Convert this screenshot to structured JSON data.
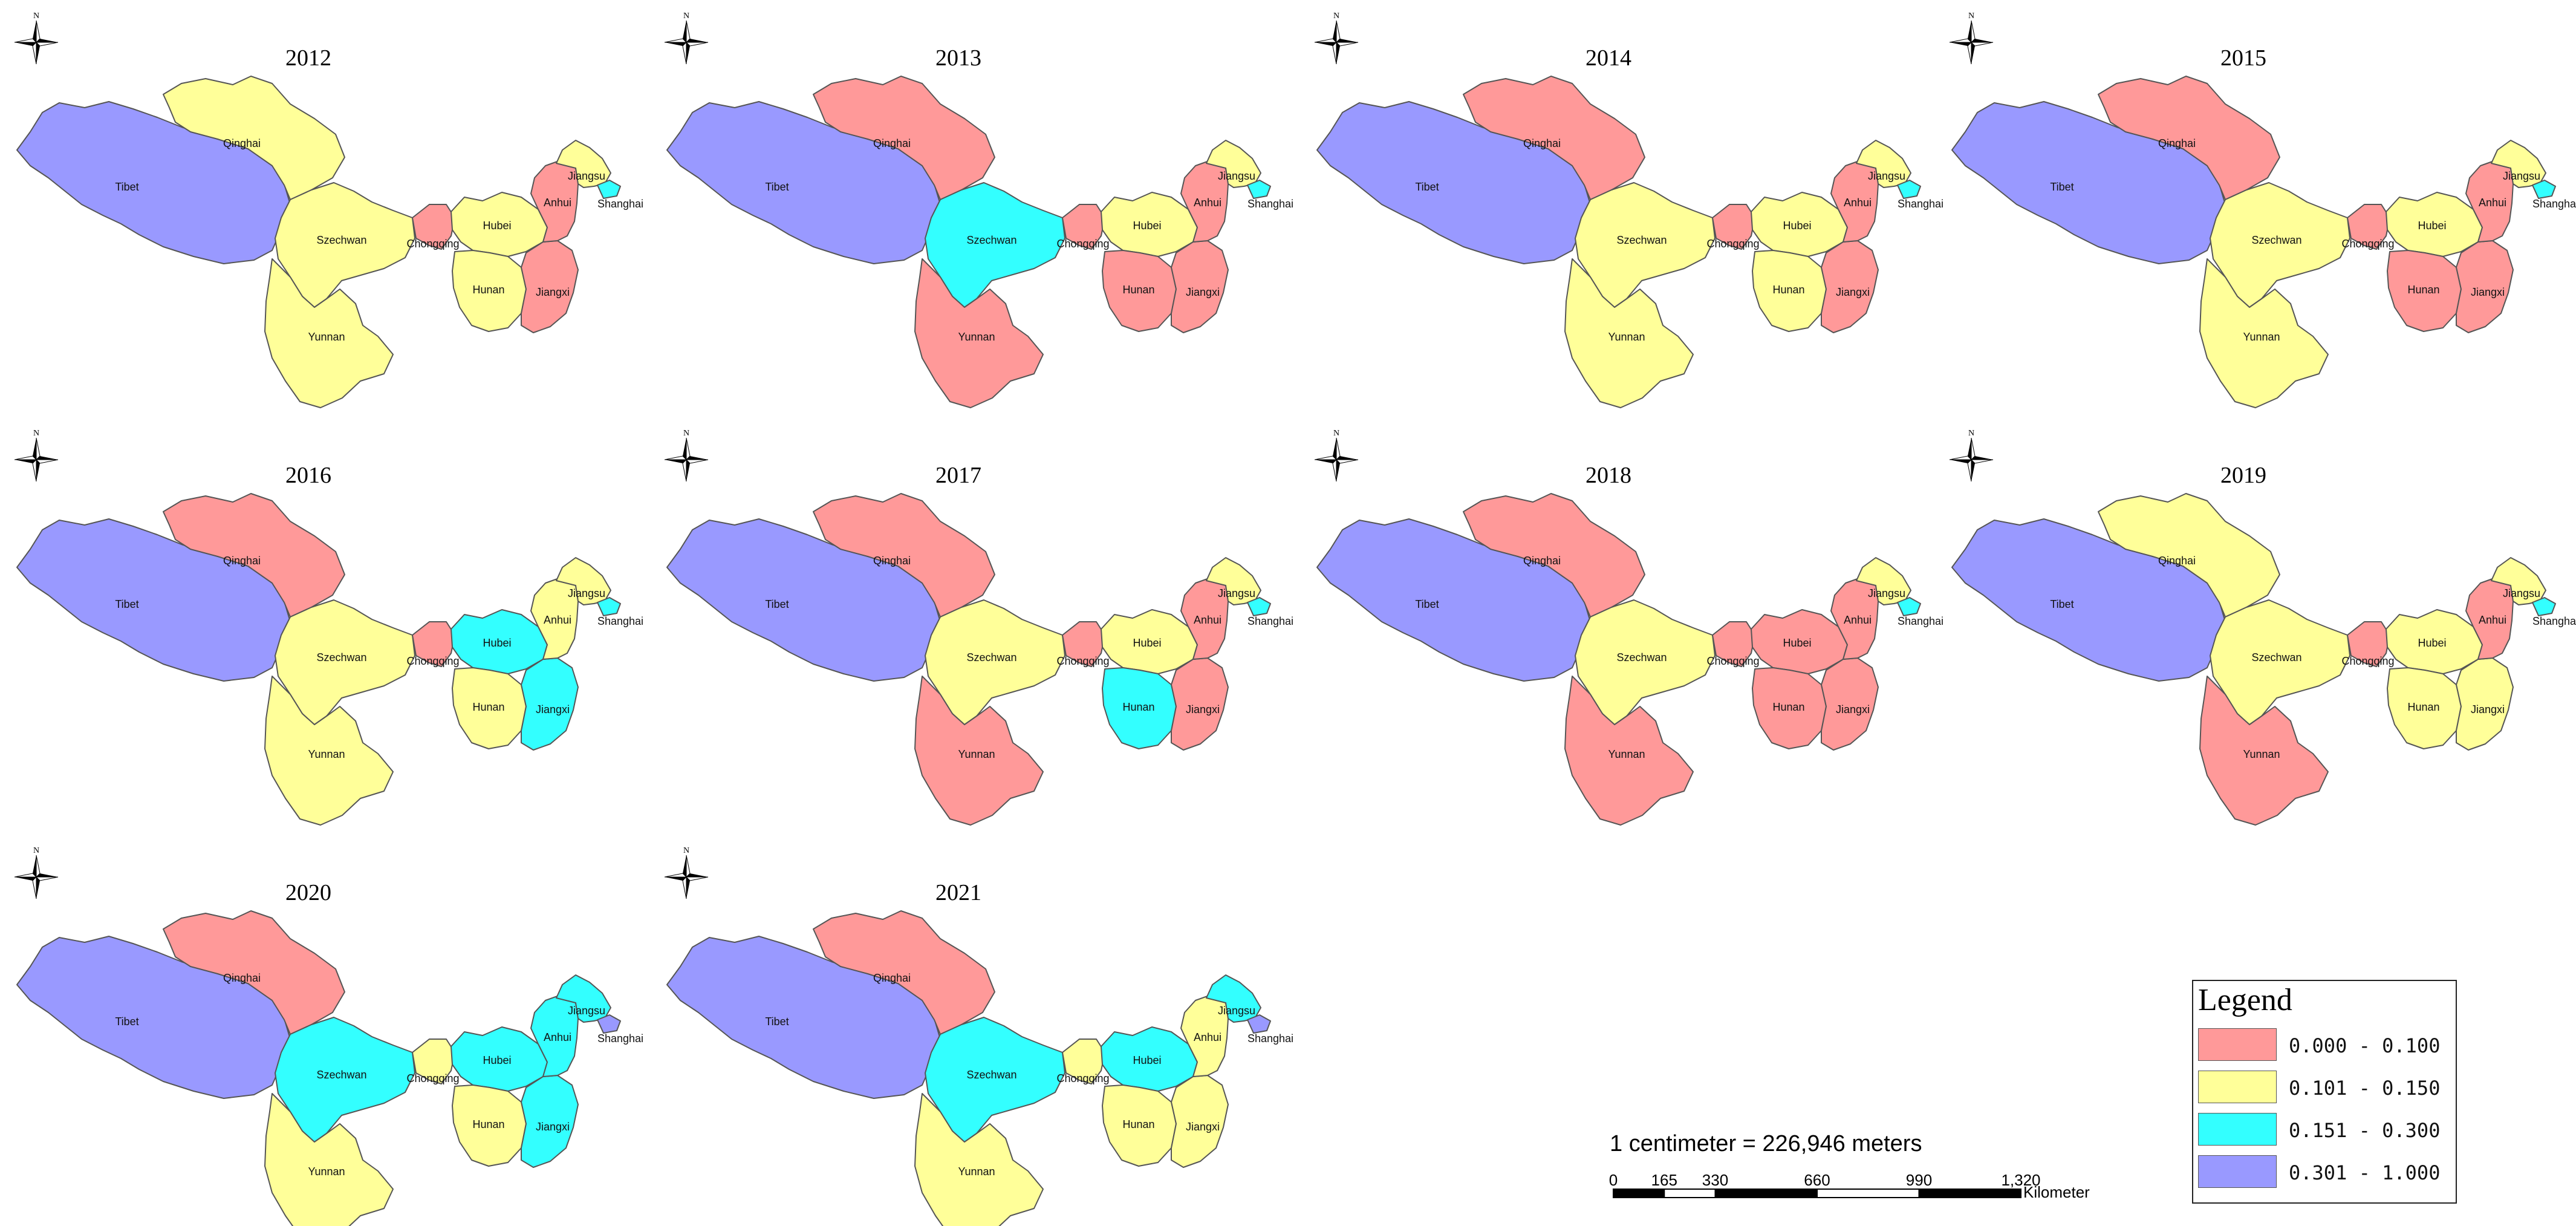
{
  "colors": {
    "c1": "#FF9999",
    "c2": "#FFFF99",
    "c3": "#33FFFF",
    "c4": "#9999FF"
  },
  "legend": {
    "title": "Legend",
    "items": [
      {
        "label": "0.000 - 0.100",
        "color_key": "c1"
      },
      {
        "label": "0.101 - 0.150",
        "color_key": "c2"
      },
      {
        "label": "0.151 - 0.300",
        "color_key": "c3"
      },
      {
        "label": "0.301 - 1.000",
        "color_key": "c4"
      }
    ]
  },
  "scale": {
    "text": "1 centimeter = 226,946 meters",
    "ticks": [
      "0",
      "165",
      "330",
      "660",
      "990",
      "1,320"
    ],
    "unit": "Kilometer"
  },
  "north_arrow_letter": "N",
  "province_names": {
    "tibet": "Tibet",
    "qinghai": "Qinghai",
    "szechwan": "Szechwan",
    "yunnan": "Yunnan",
    "chongqing": "Chongqing",
    "hubei": "Hubei",
    "hunan": "Hunan",
    "jiangxi": "Jiangxi",
    "anhui": "Anhui",
    "jiangsu": "Jiangsu",
    "shanghai": "Shanghai"
  },
  "maps": [
    {
      "year": "2012",
      "classes": {
        "tibet": 4,
        "qinghai": 2,
        "szechwan": 2,
        "yunnan": 2,
        "chongqing": 1,
        "hubei": 2,
        "hunan": 2,
        "jiangxi": 1,
        "anhui": 1,
        "jiangsu": 2,
        "shanghai": 3
      }
    },
    {
      "year": "2013",
      "classes": {
        "tibet": 4,
        "qinghai": 1,
        "szechwan": 3,
        "yunnan": 1,
        "chongqing": 1,
        "hubei": 2,
        "hunan": 1,
        "jiangxi": 1,
        "anhui": 1,
        "jiangsu": 2,
        "shanghai": 3
      }
    },
    {
      "year": "2014",
      "classes": {
        "tibet": 4,
        "qinghai": 1,
        "szechwan": 2,
        "yunnan": 2,
        "chongqing": 1,
        "hubei": 2,
        "hunan": 2,
        "jiangxi": 1,
        "anhui": 1,
        "jiangsu": 2,
        "shanghai": 3
      }
    },
    {
      "year": "2015",
      "classes": {
        "tibet": 4,
        "qinghai": 1,
        "szechwan": 2,
        "yunnan": 2,
        "chongqing": 1,
        "hubei": 2,
        "hunan": 1,
        "jiangxi": 1,
        "anhui": 1,
        "jiangsu": 2,
        "shanghai": 3
      }
    },
    {
      "year": "2016",
      "classes": {
        "tibet": 4,
        "qinghai": 1,
        "szechwan": 2,
        "yunnan": 2,
        "chongqing": 1,
        "hubei": 3,
        "hunan": 2,
        "jiangxi": 3,
        "anhui": 2,
        "jiangsu": 2,
        "shanghai": 3
      }
    },
    {
      "year": "2017",
      "classes": {
        "tibet": 4,
        "qinghai": 1,
        "szechwan": 2,
        "yunnan": 1,
        "chongqing": 1,
        "hubei": 2,
        "hunan": 3,
        "jiangxi": 1,
        "anhui": 1,
        "jiangsu": 2,
        "shanghai": 3
      }
    },
    {
      "year": "2018",
      "classes": {
        "tibet": 4,
        "qinghai": 1,
        "szechwan": 2,
        "yunnan": 1,
        "chongqing": 1,
        "hubei": 1,
        "hunan": 1,
        "jiangxi": 1,
        "anhui": 1,
        "jiangsu": 2,
        "shanghai": 3
      }
    },
    {
      "year": "2019",
      "classes": {
        "tibet": 4,
        "qinghai": 2,
        "szechwan": 2,
        "yunnan": 1,
        "chongqing": 1,
        "hubei": 2,
        "hunan": 2,
        "jiangxi": 2,
        "anhui": 1,
        "jiangsu": 2,
        "shanghai": 3
      }
    },
    {
      "year": "2020",
      "classes": {
        "tibet": 4,
        "qinghai": 1,
        "szechwan": 3,
        "yunnan": 2,
        "chongqing": 2,
        "hubei": 3,
        "hunan": 2,
        "jiangxi": 3,
        "anhui": 3,
        "jiangsu": 3,
        "shanghai": 4
      }
    },
    {
      "year": "2021",
      "classes": {
        "tibet": 4,
        "qinghai": 1,
        "szechwan": 3,
        "yunnan": 2,
        "chongqing": 2,
        "hubei": 3,
        "hunan": 2,
        "jiangxi": 2,
        "anhui": 2,
        "jiangsu": 3,
        "shanghai": 4
      }
    }
  ]
}
